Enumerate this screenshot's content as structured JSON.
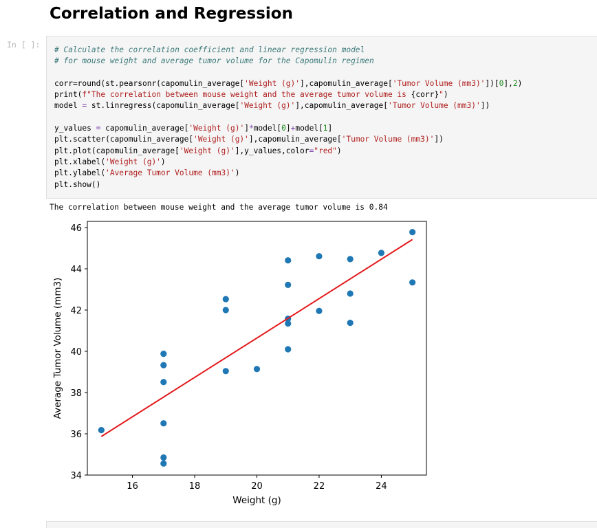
{
  "notebook": {
    "section_title": "Correlation and Regression",
    "cell_prompt": "In [ ]:",
    "output_text": "The correlation between mouse weight and the average tumor volume is 0.84"
  },
  "code_lines": [
    [
      [
        "cm",
        "# Calculate the correlation coefficient and linear regression model"
      ]
    ],
    [
      [
        "cm",
        "# for mouse weight and average tumor volume for the Capomulin regimen"
      ]
    ],
    [],
    [
      [
        "fn",
        "corr=round(st.pearsonr(capomulin_average["
      ],
      [
        "st",
        "'Weight (g)'"
      ],
      [
        "fn",
        "],capomulin_average["
      ],
      [
        "st",
        "'Tumor Volume (mm3)'"
      ],
      [
        "fn",
        "])["
      ],
      [
        "nm",
        "0"
      ],
      [
        "fn",
        "],"
      ],
      [
        "nm",
        "2"
      ],
      [
        "fn",
        ")"
      ]
    ],
    [
      [
        "fn",
        "print("
      ],
      [
        "st",
        "f\"The correlation between mouse weight and the average tumor volume is "
      ],
      [
        "fn",
        "{corr}"
      ],
      [
        "st",
        "\""
      ],
      [
        "fn",
        ")"
      ]
    ],
    [
      [
        "fn",
        "model "
      ],
      [
        "op",
        "="
      ],
      [
        "fn",
        " st.linregress(capomulin_average["
      ],
      [
        "st",
        "'Weight (g)'"
      ],
      [
        "fn",
        "],capomulin_average["
      ],
      [
        "st",
        "'Tumor Volume (mm3)'"
      ],
      [
        "fn",
        "])"
      ]
    ],
    [],
    [
      [
        "fn",
        "y_values "
      ],
      [
        "op",
        "="
      ],
      [
        "fn",
        " capomulin_average["
      ],
      [
        "st",
        "'Weight (g)'"
      ],
      [
        "fn",
        "]"
      ],
      [
        "op",
        "*"
      ],
      [
        "fn",
        "model["
      ],
      [
        "nm",
        "0"
      ],
      [
        "fn",
        "]"
      ],
      [
        "op",
        "+"
      ],
      [
        "fn",
        "model["
      ],
      [
        "nm",
        "1"
      ],
      [
        "fn",
        "]"
      ]
    ],
    [
      [
        "fn",
        "plt.scatter(capomulin_average["
      ],
      [
        "st",
        "'Weight (g)'"
      ],
      [
        "fn",
        "],capomulin_average["
      ],
      [
        "st",
        "'Tumor Volume (mm3)'"
      ],
      [
        "fn",
        "])"
      ]
    ],
    [
      [
        "fn",
        "plt.plot(capomulin_average["
      ],
      [
        "st",
        "'Weight (g)'"
      ],
      [
        "fn",
        "],y_values,color"
      ],
      [
        "op",
        "="
      ],
      [
        "st",
        "\"red\""
      ],
      [
        "fn",
        ")"
      ]
    ],
    [
      [
        "fn",
        "plt.xlabel("
      ],
      [
        "st",
        "'Weight (g)'"
      ],
      [
        "fn",
        ")"
      ]
    ],
    [
      [
        "fn",
        "plt.ylabel("
      ],
      [
        "st",
        "'Average Tumor Volume (mm3)'"
      ],
      [
        "fn",
        ")"
      ]
    ],
    [
      [
        "fn",
        "plt.show()"
      ]
    ]
  ],
  "chart_data": {
    "type": "scatter",
    "xlabel": "Weight (g)",
    "ylabel": "Average Tumor Volume (mm3)",
    "xlim": [
      14.55,
      25.45
    ],
    "ylim": [
      34.0,
      46.3
    ],
    "xticks": [
      16,
      18,
      20,
      22,
      24
    ],
    "yticks": [
      34,
      36,
      38,
      40,
      42,
      44,
      46
    ],
    "grid": false,
    "point_color": "#1f77b4",
    "line_color": "#e31a1c",
    "points": [
      {
        "x": 15,
        "y": 36.18
      },
      {
        "x": 17,
        "y": 34.56
      },
      {
        "x": 17,
        "y": 34.85
      },
      {
        "x": 17,
        "y": 36.51
      },
      {
        "x": 17,
        "y": 38.51
      },
      {
        "x": 17,
        "y": 39.33
      },
      {
        "x": 17,
        "y": 39.88
      },
      {
        "x": 19,
        "y": 39.04
      },
      {
        "x": 19,
        "y": 42.0
      },
      {
        "x": 19,
        "y": 42.53
      },
      {
        "x": 20,
        "y": 39.14
      },
      {
        "x": 21,
        "y": 40.1
      },
      {
        "x": 21,
        "y": 41.35
      },
      {
        "x": 21,
        "y": 41.58
      },
      {
        "x": 21,
        "y": 43.22
      },
      {
        "x": 21,
        "y": 44.41
      },
      {
        "x": 22,
        "y": 41.96
      },
      {
        "x": 22,
        "y": 44.61
      },
      {
        "x": 23,
        "y": 41.38
      },
      {
        "x": 23,
        "y": 42.8
      },
      {
        "x": 23,
        "y": 44.47
      },
      {
        "x": 24,
        "y": 44.77
      },
      {
        "x": 25,
        "y": 43.34
      },
      {
        "x": 25,
        "y": 45.78
      }
    ],
    "regression_line": [
      {
        "x": 15,
        "y": 35.87
      },
      {
        "x": 25,
        "y": 45.42
      }
    ]
  }
}
